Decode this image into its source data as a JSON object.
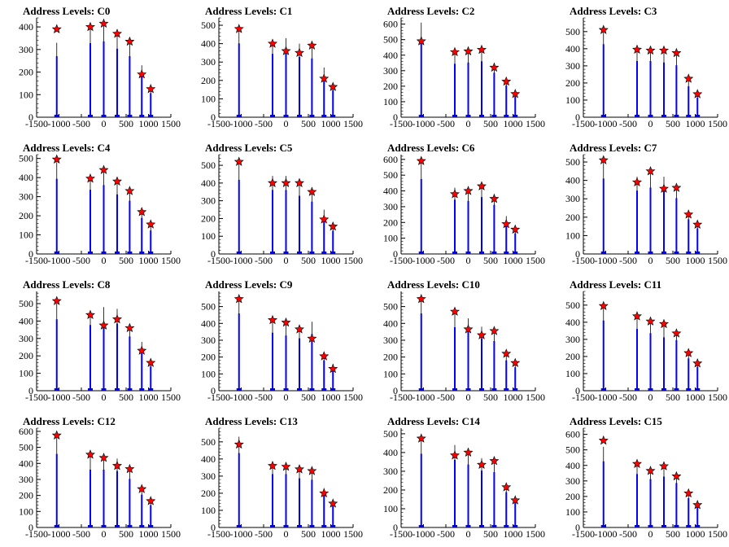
{
  "chart_data": [
    {
      "type": "bar",
      "title": "Address Levels: C0",
      "xlim": [
        -1500,
        1500
      ],
      "ylim": [
        0,
        440
      ],
      "yticks": [
        0,
        100,
        200,
        300,
        400
      ],
      "x": [
        -1050,
        -300,
        0,
        300,
        580,
        850,
        1050
      ],
      "values": [
        330,
        400,
        410,
        370,
        330,
        230,
        130
      ],
      "markers": [
        390,
        400,
        415,
        370,
        335,
        190,
        125
      ]
    },
    {
      "type": "bar",
      "title": "Address Levels: C1",
      "xlim": [
        -1500,
        1500
      ],
      "ylim": [
        0,
        540
      ],
      "yticks": [
        0,
        100,
        200,
        300,
        400,
        500
      ],
      "x": [
        -1050,
        -300,
        0,
        300,
        580,
        850,
        1050
      ],
      "values": [
        490,
        420,
        430,
        400,
        390,
        270,
        180
      ],
      "markers": [
        480,
        400,
        360,
        350,
        390,
        210,
        165
      ]
    },
    {
      "type": "bar",
      "title": "Address Levels: C2",
      "xlim": [
        -1500,
        1500
      ],
      "ylim": [
        0,
        640
      ],
      "yticks": [
        0,
        100,
        200,
        300,
        400,
        500,
        600
      ],
      "x": [
        -1050,
        -300,
        0,
        300,
        580,
        850,
        1050
      ],
      "values": [
        610,
        420,
        430,
        440,
        350,
        250,
        160
      ],
      "markers": [
        490,
        420,
        425,
        435,
        320,
        230,
        150
      ]
    },
    {
      "type": "bar",
      "title": "Address Levels: C3",
      "xlim": [
        -1500,
        1500
      ],
      "ylim": [
        0,
        580
      ],
      "yticks": [
        0,
        100,
        200,
        300,
        400,
        500
      ],
      "x": [
        -1050,
        -300,
        0,
        300,
        580,
        850,
        1050
      ],
      "values": [
        520,
        400,
        400,
        390,
        370,
        220,
        140
      ],
      "markers": [
        510,
        395,
        390,
        390,
        375,
        225,
        135
      ]
    },
    {
      "type": "bar",
      "title": "Address Levels: C4",
      "xlim": [
        -1500,
        1500
      ],
      "ylim": [
        0,
        520
      ],
      "yticks": [
        0,
        100,
        200,
        300,
        400,
        500
      ],
      "x": [
        -1050,
        -300,
        0,
        300,
        580,
        850,
        1050
      ],
      "values": [
        480,
        410,
        440,
        380,
        340,
        230,
        150
      ],
      "markers": [
        495,
        395,
        440,
        380,
        330,
        220,
        155
      ]
    },
    {
      "type": "bar",
      "title": "Address Levels: C5",
      "xlim": [
        -1500,
        1500
      ],
      "ylim": [
        0,
        560
      ],
      "yticks": [
        0,
        100,
        200,
        300,
        400,
        500
      ],
      "x": [
        -1050,
        -300,
        0,
        300,
        580,
        850,
        1050
      ],
      "values": [
        510,
        440,
        440,
        400,
        360,
        250,
        160
      ],
      "markers": [
        520,
        400,
        400,
        400,
        350,
        195,
        155
      ]
    },
    {
      "type": "bar",
      "title": "Address Levels: C6",
      "xlim": [
        -1500,
        1500
      ],
      "ylim": [
        0,
        630
      ],
      "yticks": [
        0,
        100,
        200,
        300,
        400,
        500,
        600
      ],
      "x": [
        -1050,
        -300,
        0,
        300,
        580,
        850,
        1050
      ],
      "values": [
        580,
        420,
        410,
        440,
        380,
        240,
        160
      ],
      "markers": [
        590,
        380,
        400,
        430,
        350,
        190,
        155
      ]
    },
    {
      "type": "bar",
      "title": "Address Levels: C7",
      "xlim": [
        -1500,
        1500
      ],
      "ylim": [
        0,
        540
      ],
      "yticks": [
        0,
        100,
        200,
        300,
        400,
        500
      ],
      "x": [
        -1050,
        -300,
        0,
        300,
        580,
        850,
        1050
      ],
      "values": [
        500,
        420,
        440,
        420,
        370,
        230,
        170
      ],
      "markers": [
        510,
        390,
        450,
        355,
        360,
        215,
        160
      ]
    },
    {
      "type": "bar",
      "title": "Address Levels: C8",
      "xlim": [
        -1500,
        1500
      ],
      "ylim": [
        0,
        570
      ],
      "yticks": [
        0,
        100,
        200,
        300,
        400,
        500
      ],
      "x": [
        -1050,
        -300,
        0,
        300,
        580,
        850,
        1050
      ],
      "values": [
        500,
        460,
        480,
        470,
        380,
        280,
        170
      ],
      "markers": [
        515,
        435,
        375,
        410,
        360,
        230,
        160
      ]
    },
    {
      "type": "bar",
      "title": "Address Levels: C9",
      "xlim": [
        -1500,
        1500
      ],
      "ylim": [
        0,
        590
      ],
      "yticks": [
        0,
        100,
        200,
        300,
        400,
        500
      ],
      "x": [
        -1050,
        -300,
        0,
        300,
        580,
        850,
        1050
      ],
      "values": [
        560,
        420,
        400,
        380,
        410,
        220,
        160
      ],
      "markers": [
        545,
        420,
        405,
        365,
        310,
        205,
        130
      ]
    },
    {
      "type": "bar",
      "title": "Address Levels: C10",
      "xlim": [
        -1500,
        1500
      ],
      "ylim": [
        0,
        590
      ],
      "yticks": [
        0,
        100,
        200,
        300,
        400,
        500
      ],
      "x": [
        -1050,
        -300,
        0,
        300,
        580,
        850,
        1050
      ],
      "values": [
        560,
        460,
        430,
        380,
        360,
        220,
        170
      ],
      "markers": [
        545,
        470,
        365,
        330,
        355,
        220,
        165
      ]
    },
    {
      "type": "bar",
      "title": "Address Levels: C11",
      "xlim": [
        -1500,
        1500
      ],
      "ylim": [
        0,
        580
      ],
      "yticks": [
        0,
        100,
        200,
        300,
        400,
        500
      ],
      "x": [
        -1050,
        -300,
        0,
        300,
        580,
        850,
        1050
      ],
      "values": [
        500,
        440,
        410,
        380,
        360,
        230,
        170
      ],
      "markers": [
        495,
        435,
        405,
        390,
        335,
        220,
        160
      ]
    },
    {
      "type": "bar",
      "title": "Address Levels: C12",
      "xlim": [
        -1500,
        1500
      ],
      "ylim": [
        0,
        620
      ],
      "yticks": [
        0,
        100,
        200,
        300,
        400,
        500,
        600
      ],
      "x": [
        -1050,
        -300,
        0,
        300,
        580,
        850,
        1050
      ],
      "values": [
        560,
        440,
        440,
        430,
        370,
        250,
        170
      ],
      "markers": [
        575,
        455,
        435,
        385,
        365,
        240,
        165
      ]
    },
    {
      "type": "bar",
      "title": "Address Levels: C13",
      "xlim": [
        -1500,
        1500
      ],
      "ylim": [
        0,
        580
      ],
      "yticks": [
        0,
        100,
        200,
        300,
        400,
        500
      ],
      "x": [
        -1050,
        -300,
        0,
        300,
        580,
        850,
        1050
      ],
      "values": [
        530,
        380,
        380,
        350,
        340,
        230,
        160
      ],
      "markers": [
        485,
        360,
        355,
        340,
        330,
        200,
        140
      ]
    },
    {
      "type": "bar",
      "title": "Address Levels: C14",
      "xlim": [
        -1500,
        1500
      ],
      "ylim": [
        0,
        530
      ],
      "yticks": [
        0,
        100,
        200,
        300,
        400,
        500
      ],
      "x": [
        -1050,
        -300,
        0,
        300,
        580,
        850,
        1050
      ],
      "values": [
        480,
        440,
        410,
        370,
        360,
        230,
        160
      ],
      "markers": [
        475,
        385,
        400,
        335,
        355,
        215,
        145
      ]
    },
    {
      "type": "bar",
      "title": "Address Levels: C15",
      "xlim": [
        -1500,
        1500
      ],
      "ylim": [
        0,
        640
      ],
      "yticks": [
        0,
        100,
        200,
        300,
        400,
        500,
        600
      ],
      "x": [
        -1050,
        -300,
        0,
        300,
        580,
        850,
        1050
      ],
      "values": [
        520,
        420,
        380,
        400,
        350,
        230,
        160
      ],
      "markers": [
        560,
        410,
        365,
        395,
        330,
        220,
        145
      ]
    }
  ],
  "xticks": [
    -1500,
    -1000,
    -500,
    0,
    500,
    1000,
    1500
  ],
  "colors": {
    "bar": "#0000ff",
    "bar_tip": "#000000",
    "marker_fill": "#ff0000",
    "marker_stroke": "#000000"
  }
}
